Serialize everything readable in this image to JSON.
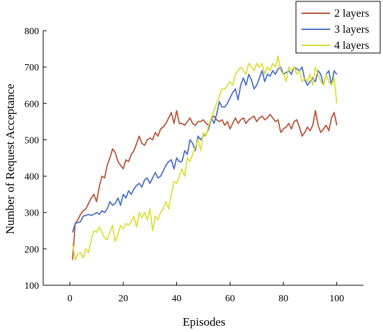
{
  "chart_data": {
    "type": "line",
    "title": "",
    "xlabel": "Episodes",
    "ylabel": "Number of Request Acceptance",
    "xlim": [
      -10,
      110
    ],
    "ylim": [
      100,
      800
    ],
    "xticks": [
      0,
      20,
      40,
      60,
      80,
      100
    ],
    "yticks": [
      100,
      200,
      300,
      400,
      500,
      600,
      700,
      800
    ],
    "grid": false,
    "legend": "top-right",
    "x": [
      1,
      2,
      3,
      4,
      5,
      6,
      7,
      8,
      9,
      10,
      11,
      12,
      13,
      14,
      15,
      16,
      17,
      18,
      19,
      20,
      21,
      22,
      23,
      24,
      25,
      26,
      27,
      28,
      29,
      30,
      31,
      32,
      33,
      34,
      35,
      36,
      37,
      38,
      39,
      40,
      41,
      42,
      43,
      44,
      45,
      46,
      47,
      48,
      49,
      50,
      51,
      52,
      53,
      54,
      55,
      56,
      57,
      58,
      59,
      60,
      61,
      62,
      63,
      64,
      65,
      66,
      67,
      68,
      69,
      70,
      71,
      72,
      73,
      74,
      75,
      76,
      77,
      78,
      79,
      80,
      81,
      82,
      83,
      84,
      85,
      86,
      87,
      88,
      89,
      90,
      91,
      92,
      93,
      94,
      95,
      96,
      97,
      98,
      99,
      100
    ],
    "series": [
      {
        "name": "2 layers",
        "color": "#b5573a",
        "values": [
          170,
          270,
          280,
          295,
          305,
          310,
          325,
          340,
          350,
          330,
          370,
          400,
          395,
          430,
          450,
          475,
          465,
          440,
          430,
          420,
          445,
          440,
          460,
          470,
          490,
          510,
          490,
          485,
          500,
          505,
          500,
          520,
          510,
          530,
          535,
          545,
          560,
          575,
          545,
          580,
          545,
          545,
          540,
          550,
          560,
          545,
          540,
          550,
          550,
          555,
          545,
          540,
          560,
          565,
          555,
          550,
          555,
          540,
          550,
          530,
          545,
          560,
          545,
          555,
          560,
          545,
          555,
          560,
          565,
          550,
          560,
          565,
          555,
          560,
          570,
          560,
          550,
          555,
          520,
          530,
          535,
          545,
          530,
          550,
          555,
          535,
          510,
          520,
          535,
          525,
          540,
          580,
          540,
          520,
          530,
          540,
          525,
          560,
          575,
          540
        ]
      },
      {
        "name": "3 layers",
        "color": "#4a72c4",
        "values": [
          245,
          270,
          272,
          275,
          290,
          292,
          295,
          292,
          295,
          300,
          295,
          305,
          300,
          310,
          330,
          320,
          325,
          340,
          320,
          350,
          340,
          360,
          350,
          365,
          375,
          380,
          370,
          390,
          395,
          380,
          395,
          410,
          395,
          400,
          415,
          430,
          440,
          445,
          420,
          450,
          440,
          440,
          470,
          460,
          500,
          490,
          470,
          510,
          500,
          510,
          515,
          530,
          560,
          545,
          570,
          605,
          590,
          590,
          600,
          615,
          630,
          640,
          610,
          650,
          670,
          650,
          680,
          665,
          640,
          650,
          670,
          690,
          660,
          680,
          675,
          690,
          680,
          695,
          700,
          680,
          685,
          690,
          680,
          700,
          695,
          690,
          700,
          665,
          650,
          660,
          670,
          660,
          690,
          680,
          650,
          680,
          690,
          650,
          690,
          680
        ]
      },
      {
        "name": "4 layers",
        "color": "#dede3c",
        "values": [
          215,
          170,
          185,
          190,
          175,
          200,
          190,
          225,
          250,
          245,
          260,
          245,
          230,
          225,
          245,
          265,
          220,
          240,
          265,
          255,
          270,
          265,
          275,
          290,
          260,
          300,
          285,
          300,
          280,
          310,
          250,
          290,
          280,
          300,
          310,
          330,
          310,
          350,
          385,
          380,
          400,
          420,
          400,
          450,
          440,
          460,
          480,
          500,
          470,
          520,
          510,
          540,
          560,
          580,
          600,
          620,
          640,
          640,
          650,
          660,
          650,
          680,
          690,
          700,
          690,
          680,
          710,
          700,
          690,
          710,
          700,
          710,
          680,
          700,
          690,
          710,
          700,
          730,
          690,
          680,
          660,
          700,
          690,
          700,
          680,
          690,
          660,
          670,
          660,
          680,
          650,
          700,
          680,
          660,
          650,
          680,
          660,
          650,
          670,
          600
        ]
      }
    ]
  }
}
